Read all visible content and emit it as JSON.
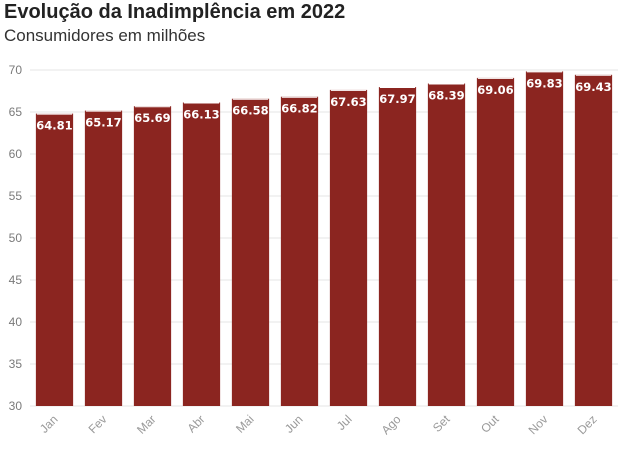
{
  "chart_data": {
    "type": "bar",
    "title": "Evolução da Inadimplência em 2022",
    "subtitle": "Consumidores em milhões",
    "xlabel": "",
    "ylabel": "",
    "categories": [
      "Jan",
      "Fev",
      "Mar",
      "Abr",
      "Mai",
      "Jun",
      "Jul",
      "Ago",
      "Set",
      "Out",
      "Nov",
      "Dez"
    ],
    "values": [
      64.81,
      65.17,
      65.69,
      66.13,
      66.58,
      66.82,
      67.63,
      67.97,
      68.39,
      69.06,
      69.83,
      69.43
    ],
    "data_labels": [
      "64.81",
      "65.17",
      "65.69",
      "66.13",
      "66.58",
      "66.82",
      "67.63",
      "67.97",
      "68.39",
      "69.06",
      "69.83",
      "69.43"
    ],
    "ylim": [
      30,
      70
    ],
    "yticks": [
      "30",
      "35",
      "40",
      "45",
      "50",
      "55",
      "60",
      "65",
      "70"
    ],
    "grid": true,
    "legend": "none",
    "bar_color": "#8b2520",
    "grid_color": "#e6e6e6",
    "label_color": "#ffffff"
  }
}
